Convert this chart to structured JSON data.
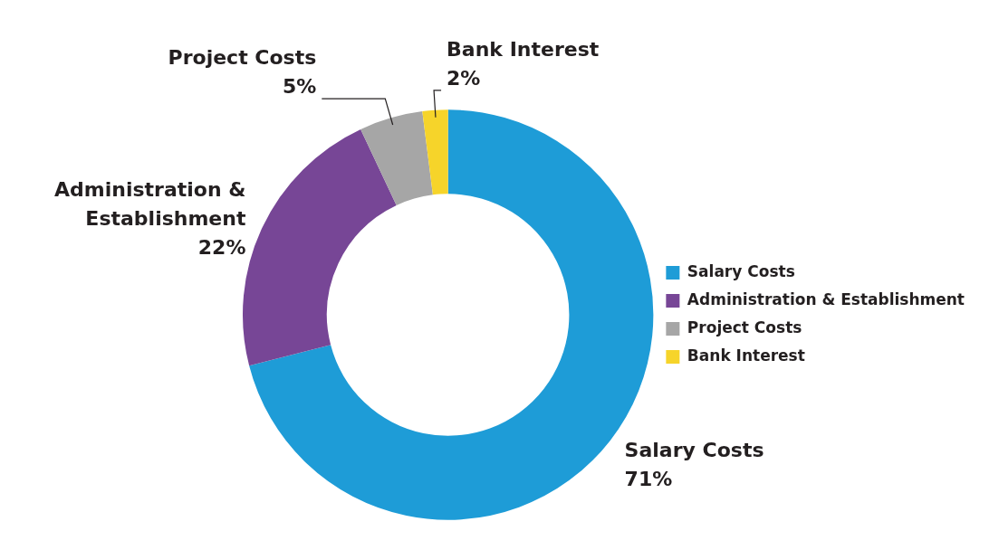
{
  "chart_data": {
    "type": "donut",
    "categories": [
      "Salary Costs",
      "Administration & Establishment",
      "Project Costs",
      "Bank Interest"
    ],
    "values": [
      71,
      22,
      5,
      2
    ],
    "value_labels": [
      "71%",
      "22%",
      "5%",
      "2%"
    ],
    "colors": [
      "#1e9cd7",
      "#774696",
      "#a6a6a6",
      "#f6d42a"
    ],
    "legend": "right"
  }
}
